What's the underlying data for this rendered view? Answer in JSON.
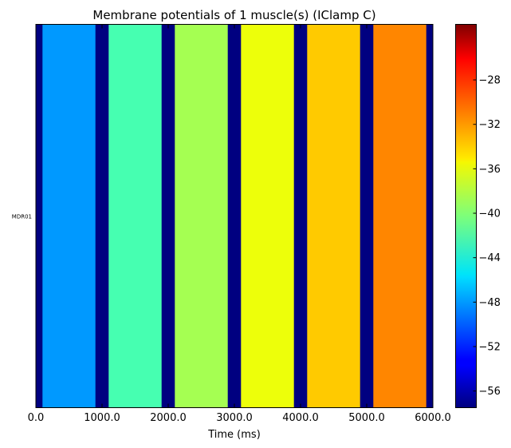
{
  "chart_data": {
    "type": "heatmap",
    "title": "Membrane potentials of 1 muscle(s) (IClamp C)",
    "xlabel": "Time (ms)",
    "ylabel": "",
    "xlim": [
      0,
      6000
    ],
    "x_ticks": [
      {
        "value": 0,
        "label": "0.0"
      },
      {
        "value": 1000,
        "label": "1000.0"
      },
      {
        "value": 2000,
        "label": "2000.0"
      },
      {
        "value": 3000,
        "label": "3000.0"
      },
      {
        "value": 4000,
        "label": "4000.0"
      },
      {
        "value": 5000,
        "label": "5000.0"
      },
      {
        "value": 6000,
        "label": "6000.0"
      }
    ],
    "rows": [
      "MDR01"
    ],
    "colormap": "jet",
    "color_range": [
      -57.5,
      -23.0
    ],
    "colorbar_ticks": [
      {
        "value": -28,
        "label": "−28"
      },
      {
        "value": -32,
        "label": "−32"
      },
      {
        "value": -36,
        "label": "−36"
      },
      {
        "value": -40,
        "label": "−40"
      },
      {
        "value": -44,
        "label": "−44"
      },
      {
        "value": -48,
        "label": "−48"
      },
      {
        "value": -52,
        "label": "−52"
      },
      {
        "value": -56,
        "label": "−56"
      }
    ],
    "segments": [
      {
        "start": 0,
        "end": 100,
        "value": -57.5
      },
      {
        "start": 100,
        "end": 150,
        "value": -48.0
      },
      {
        "start": 150,
        "end": 900,
        "value": -48.0
      },
      {
        "start": 900,
        "end": 1100,
        "value": -57.5
      },
      {
        "start": 1100,
        "end": 1900,
        "value": -42.5
      },
      {
        "start": 1900,
        "end": 2100,
        "value": -57.5
      },
      {
        "start": 2100,
        "end": 2900,
        "value": -38.5
      },
      {
        "start": 2900,
        "end": 3100,
        "value": -57.5
      },
      {
        "start": 3100,
        "end": 3900,
        "value": -35.5
      },
      {
        "start": 3900,
        "end": 4100,
        "value": -57.5
      },
      {
        "start": 4100,
        "end": 4900,
        "value": -33.5
      },
      {
        "start": 4900,
        "end": 5100,
        "value": -57.5
      },
      {
        "start": 5100,
        "end": 5900,
        "value": -31.0
      },
      {
        "start": 5900,
        "end": 6000,
        "value": -57.5
      }
    ],
    "grid": false,
    "legend": "colorbar-right"
  }
}
